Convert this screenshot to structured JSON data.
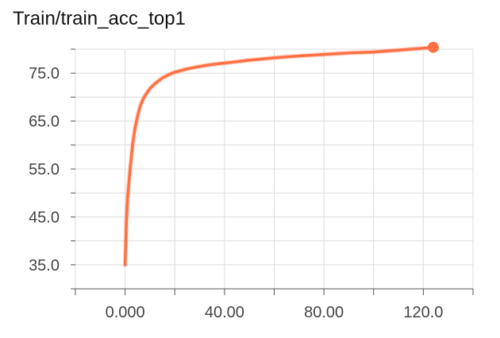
{
  "chart_data": {
    "type": "line",
    "title": "Train/train_acc_top1",
    "xlabel": "",
    "ylabel": "",
    "xlim": [
      -20,
      140
    ],
    "ylim": [
      30,
      80
    ],
    "x_ticks": [
      0,
      40,
      80,
      120
    ],
    "x_tick_labels": [
      "0.000",
      "40.00",
      "80.00",
      "120.0"
    ],
    "y_ticks": [
      35,
      45,
      55,
      65,
      75
    ],
    "y_tick_labels": [
      "35.0",
      "45.0",
      "55.0",
      "65.0",
      "75.0"
    ],
    "grid": true,
    "legend": "none",
    "series": [
      {
        "color": "#ff7043",
        "x": [
          0,
          0.5,
          1,
          2,
          3,
          4,
          5,
          6,
          7,
          8,
          10,
          12,
          15,
          18,
          20,
          25,
          30,
          35,
          40,
          45,
          50,
          60,
          70,
          80,
          90,
          100,
          105,
          110,
          115,
          120,
          124
        ],
        "y": [
          35.0,
          44.0,
          49.0,
          55.0,
          60.0,
          63.5,
          66.0,
          68.0,
          69.3,
          70.3,
          71.8,
          72.8,
          74.0,
          74.8,
          75.2,
          75.9,
          76.4,
          76.8,
          77.1,
          77.4,
          77.7,
          78.2,
          78.6,
          78.9,
          79.2,
          79.4,
          79.6,
          79.8,
          80.0,
          80.2,
          80.4
        ]
      }
    ]
  }
}
